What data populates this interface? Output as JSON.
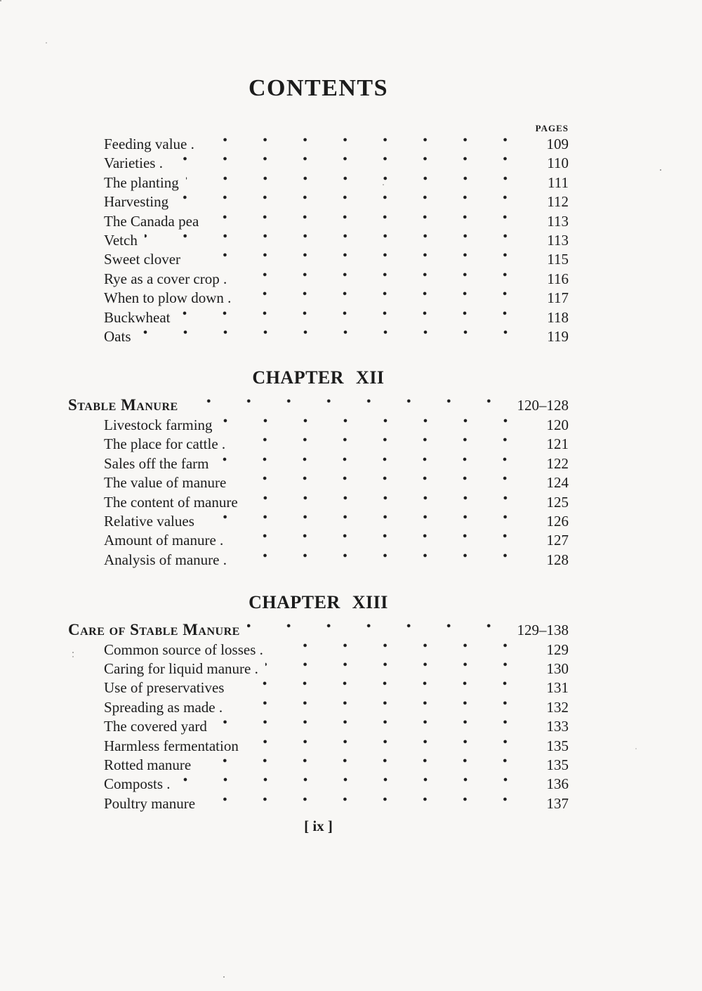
{
  "document": {
    "title": "CONTENTS",
    "pages_column_label": "PAGES",
    "footer_page_marker": "[ ix ]"
  },
  "colors": {
    "paper": "#f8f7f5",
    "ink": "#1c1c1c"
  },
  "toc": {
    "intro_entries": [
      {
        "label": "Feeding value .",
        "page": "109"
      },
      {
        "label": "Varieties .",
        "page": "110"
      },
      {
        "label": "The planting",
        "page": "111"
      },
      {
        "label": "Harvesting",
        "page": "112"
      },
      {
        "label": "The Canada pea",
        "page": "113"
      },
      {
        "label": "Vetch",
        "page": "113"
      },
      {
        "label": "Sweet clover",
        "page": "115"
      },
      {
        "label": "Rye as a cover crop .",
        "page": "116"
      },
      {
        "label": "When to plow down .",
        "page": "117"
      },
      {
        "label": "Buckwheat",
        "page": "118"
      },
      {
        "label": "Oats",
        "page": "119"
      }
    ],
    "chapters": [
      {
        "heading": "CHAPTER XII",
        "title": "Stable Manure",
        "page_range": "120–128",
        "entries": [
          {
            "label": "Livestock farming",
            "page": "120"
          },
          {
            "label": "The place for cattle .",
            "page": "121"
          },
          {
            "label": "Sales off the farm",
            "page": "122"
          },
          {
            "label": "The value of manure",
            "page": "124"
          },
          {
            "label": "The content of manure",
            "page": "125"
          },
          {
            "label": "Relative values",
            "page": "126"
          },
          {
            "label": "Amount of manure .",
            "page": "127"
          },
          {
            "label": "Analysis of manure .",
            "page": "128"
          }
        ]
      },
      {
        "heading": "CHAPTER XIII",
        "title": "Care of Stable Manure",
        "page_range": "129–138",
        "entries": [
          {
            "label": "Common source of losses .",
            "page": "129"
          },
          {
            "label": "Caring for liquid manure .",
            "page": "130"
          },
          {
            "label": "Use of preservatives",
            "page": "131"
          },
          {
            "label": "Spreading as made .",
            "page": "132"
          },
          {
            "label": "The covered yard",
            "page": "133"
          },
          {
            "label": "Harmless fermentation",
            "page": "135"
          },
          {
            "label": "Rotted manure",
            "page": "135"
          },
          {
            "label": "Composts .",
            "page": "136"
          },
          {
            "label": "Poultry manure",
            "page": "137"
          }
        ]
      }
    ]
  }
}
